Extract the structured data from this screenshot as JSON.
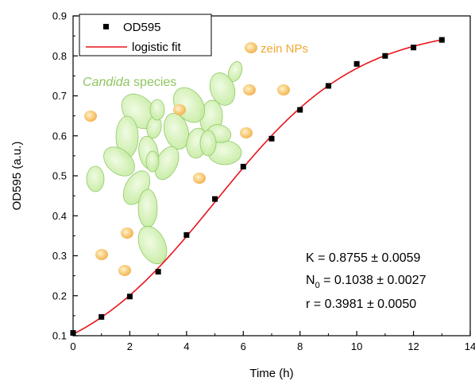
{
  "chart_data": {
    "type": "scatter",
    "xlabel": "Time (h)",
    "ylabel": "OD595 (a.u.)",
    "xlim": [
      0,
      14
    ],
    "ylim": [
      0.1,
      0.9
    ],
    "xticks": [
      0,
      2,
      4,
      6,
      8,
      10,
      12,
      14
    ],
    "xtick_labels": [
      "0",
      "2",
      "4",
      "6",
      "8",
      "10",
      "12",
      "14"
    ],
    "yticks": [
      0.1,
      0.2,
      0.3,
      0.4,
      0.5,
      0.6,
      0.7,
      0.8,
      0.9
    ],
    "ytick_labels": [
      "0.1",
      "0.2",
      "0.3",
      "0.4",
      "0.5",
      "0.6",
      "0.7",
      "0.8",
      "0.9"
    ],
    "grid": false,
    "legend_position": "top-left",
    "series": [
      {
        "name": "OD595",
        "marker": "square",
        "color": "#000000",
        "x": [
          0,
          1,
          2,
          3,
          4,
          5,
          6,
          7,
          8,
          9,
          10,
          11,
          12,
          13
        ],
        "y": [
          0.107,
          0.147,
          0.198,
          0.26,
          0.352,
          0.442,
          0.523,
          0.593,
          0.665,
          0.725,
          0.78,
          0.8,
          0.821,
          0.84
        ]
      },
      {
        "name": "logistic fit",
        "kind": "line",
        "color": "#e8141b",
        "model": {
          "K": 0.8755,
          "N0": 0.1038,
          "r": 0.3981
        }
      }
    ],
    "annotations": {
      "stats": [
        {
          "label": "K",
          "sub": "",
          "text": " = 0.8755 ± 0.0059"
        },
        {
          "label": "N",
          "sub": "0",
          "text": " = 0.1038 ± 0.0027"
        },
        {
          "label": "r",
          "sub": "",
          "text": " = 0.3981 ± 0.0050"
        }
      ],
      "candida_italic": "Candida",
      "candida_rest": " species",
      "zein": "zein NPs"
    },
    "colors": {
      "candida_cell_fill": "#d4f0b4",
      "candida_cell_stroke": "#93c96a",
      "zein_np": "#f6c36a"
    }
  }
}
